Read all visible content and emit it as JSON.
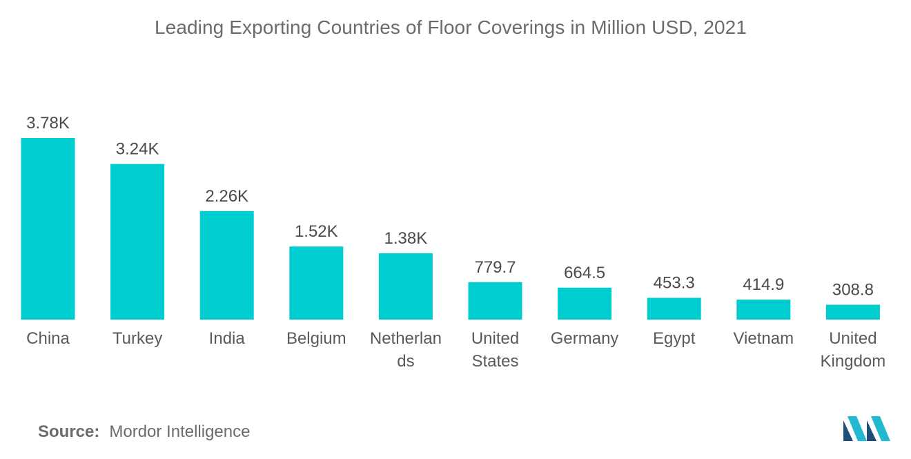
{
  "chart_data": {
    "type": "bar",
    "title": "Leading Exporting Countries of Floor Coverings in Million USD, 2021",
    "categories": [
      [
        "China"
      ],
      [
        "Turkey"
      ],
      [
        "India"
      ],
      [
        "Belgium"
      ],
      [
        "Netherlan",
        "ds"
      ],
      [
        "United",
        "States"
      ],
      [
        "Germany"
      ],
      [
        "Egypt"
      ],
      [
        "Vietnam"
      ],
      [
        "United",
        "Kingdom"
      ]
    ],
    "values": [
      3780,
      3240,
      2260,
      1520,
      1380,
      779.7,
      664.5,
      453.3,
      414.9,
      308.8
    ],
    "data_labels": [
      "3.78K",
      "3.24K",
      "2.26K",
      "1.52K",
      "1.38K",
      "779.7",
      "664.5",
      "453.3",
      "414.9",
      "308.8"
    ],
    "ylim": [
      0,
      3780
    ],
    "grid": false,
    "legend": "none",
    "bar_color": "#00cdd0"
  },
  "footer": {
    "source_label": "Source:",
    "source_text": "Mordor Intelligence"
  },
  "logo": {
    "icon": "mordor-intelligence-logo-icon",
    "color_dark": "#1f4e79",
    "color_light": "#22b8cf"
  }
}
